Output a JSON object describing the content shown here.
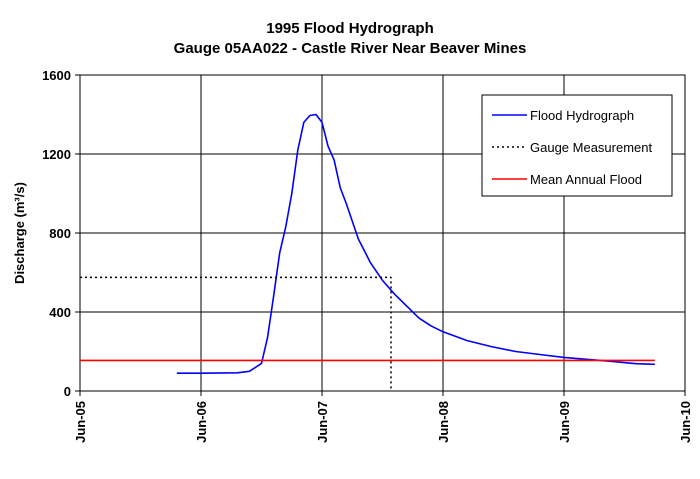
{
  "chart_data": {
    "type": "line",
    "title": "1995 Flood Hydrograph",
    "subtitle": "Gauge 05AA022 - Castle River Near Beaver Mines",
    "ylabel": "Discharge (m³/s)",
    "xlabel": "",
    "x_ticks": [
      "Jun-05",
      "Jun-06",
      "Jun-07",
      "Jun-08",
      "Jun-09",
      "Jun-10"
    ],
    "y_ticks": [
      "0",
      "400",
      "800",
      "1200",
      "1600"
    ],
    "xlim": [
      5,
      10
    ],
    "ylim": [
      0,
      1600
    ],
    "grid": true,
    "legend_position": "top-right",
    "series": [
      {
        "name": "Flood Hydrograph",
        "color": "#0000ff",
        "style": "solid",
        "x": [
          5.8,
          6.0,
          6.3,
          6.4,
          6.5,
          6.55,
          6.6,
          6.65,
          6.7,
          6.75,
          6.8,
          6.85,
          6.9,
          6.95,
          7.0,
          7.05,
          7.1,
          7.15,
          7.2,
          7.25,
          7.3,
          7.4,
          7.5,
          7.6,
          7.7,
          7.8,
          7.9,
          8.0,
          8.2,
          8.4,
          8.6,
          8.8,
          9.0,
          9.2,
          9.4,
          9.6,
          9.75
        ],
        "y": [
          90,
          90,
          92,
          100,
          140,
          270,
          480,
          700,
          830,
          1000,
          1220,
          1360,
          1395,
          1400,
          1360,
          1240,
          1170,
          1030,
          950,
          860,
          770,
          650,
          560,
          490,
          430,
          370,
          330,
          300,
          255,
          225,
          200,
          185,
          170,
          160,
          150,
          138,
          135
        ]
      },
      {
        "name": "Gauge Measurement",
        "color": "#000000",
        "style": "dotted",
        "x": [
          5.0,
          7.57,
          7.57
        ],
        "y": [
          575,
          575,
          0
        ]
      },
      {
        "name": "Mean Annual Flood",
        "color": "#ff0000",
        "style": "solid",
        "x": [
          5.0,
          9.75
        ],
        "y": [
          155,
          155
        ]
      }
    ]
  }
}
